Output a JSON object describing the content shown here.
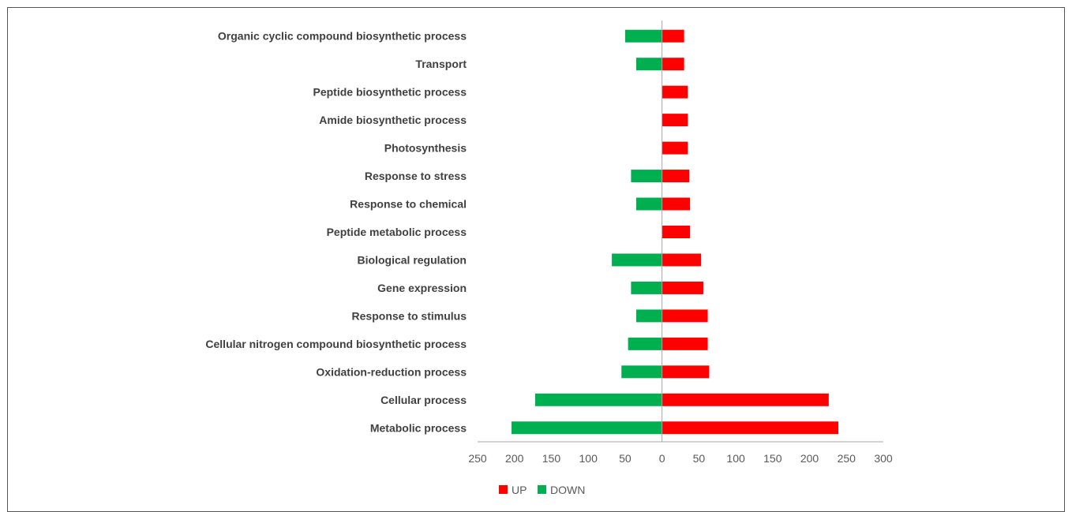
{
  "chart_data": {
    "type": "bar",
    "orientation": "horizontal-diverging",
    "categories": [
      "Organic cyclic compound biosynthetic process",
      "Transport",
      "Peptide biosynthetic process",
      "Amide biosynthetic process",
      "Photosynthesis",
      "Response to stress",
      "Response to chemical",
      "Peptide metabolic process",
      "Biological regulation",
      "Gene expression",
      "Response to stimulus",
      "Cellular nitrogen compound biosynthetic process",
      "Oxidation-reduction process",
      "Cellular process",
      "Metabolic process"
    ],
    "series": [
      {
        "name": "UP",
        "color": "#ff0000",
        "values": [
          30,
          30,
          35,
          35,
          35,
          37,
          38,
          38,
          53,
          56,
          62,
          62,
          64,
          226,
          239
        ]
      },
      {
        "name": "DOWN",
        "color": "#00b050",
        "values": [
          50,
          35,
          0,
          0,
          0,
          42,
          35,
          0,
          68,
          42,
          35,
          46,
          55,
          172,
          204
        ]
      }
    ],
    "xlim": [
      -250,
      300
    ],
    "xticks": [
      -250,
      -200,
      -150,
      -100,
      -50,
      0,
      50,
      100,
      150,
      200,
      250,
      300
    ],
    "xtick_labels": [
      "250",
      "200",
      "150",
      "100",
      "50",
      "0",
      "50",
      "100",
      "150",
      "200",
      "250",
      "300"
    ],
    "legend_position": "bottom",
    "grid": false
  }
}
